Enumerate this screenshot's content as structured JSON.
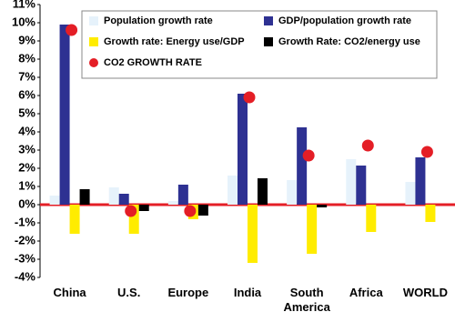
{
  "chart_data": {
    "type": "bar",
    "categories": [
      "China",
      "U.S.",
      "Europe",
      "India",
      "South America",
      "Africa",
      "WORLD"
    ],
    "series": [
      {
        "name": "Population growth rate",
        "color": "#e6f2fb",
        "values": [
          0.5,
          0.95,
          0.2,
          1.6,
          1.35,
          2.5,
          1.25
        ]
      },
      {
        "name": "GDP/population growth rate",
        "color": "#2e3192",
        "values": [
          9.9,
          0.6,
          1.1,
          6.1,
          4.25,
          2.15,
          2.6
        ]
      },
      {
        "name": "Growth rate: Energy use/GDP",
        "color": "#ffec00",
        "values": [
          -1.6,
          -1.6,
          -0.8,
          -3.2,
          -2.7,
          -1.5,
          -0.95
        ]
      },
      {
        "name": "Growth Rate: CO2/energy use",
        "color": "#000000",
        "values": [
          0.85,
          -0.35,
          -0.6,
          1.45,
          -0.15,
          0,
          0
        ]
      },
      {
        "name": "CO2 GROWTH RATE",
        "color": "#e41e26",
        "type": "scatter",
        "values": [
          9.6,
          -0.35,
          -0.35,
          5.9,
          2.7,
          3.25,
          2.9
        ]
      }
    ],
    "ylim": [
      -4,
      11
    ],
    "yticks": [
      {
        "value": -4,
        "label": "-4%"
      },
      {
        "value": -3,
        "label": "-3%"
      },
      {
        "value": -2,
        "label": "-2%"
      },
      {
        "value": -1,
        "label": "-1%"
      },
      {
        "value": 0,
        "label": "0%"
      },
      {
        "value": 1,
        "label": "1%"
      },
      {
        "value": 2,
        "label": "2%"
      },
      {
        "value": 3,
        "label": "3%"
      },
      {
        "value": 4,
        "label": "4%"
      },
      {
        "value": 5,
        "label": "5%"
      },
      {
        "value": 6,
        "label": "6%"
      },
      {
        "value": 7,
        "label": "7%"
      },
      {
        "value": 8,
        "label": "8%"
      },
      {
        "value": 9,
        "label": "9%"
      },
      {
        "value": 10,
        "label": "10%"
      },
      {
        "value": 11,
        "label": "11%"
      }
    ]
  }
}
